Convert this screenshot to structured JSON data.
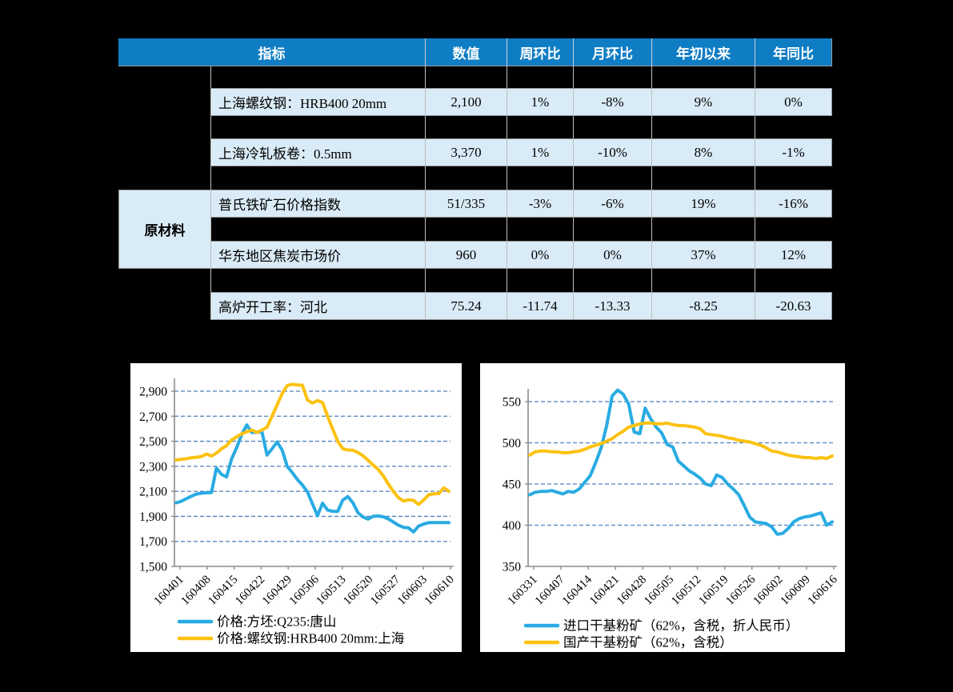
{
  "page": {
    "background": "#000000"
  },
  "table": {
    "colors": {
      "header_bg": "#0F7DC4",
      "row_bg": "#D9EBF6",
      "header_text": "#FFFFFF",
      "grid_line": "#8F8F8F"
    },
    "header": {
      "indicator": "指标",
      "cols": [
        "数值",
        "周环比",
        "月环比",
        "年初以来",
        "年同比"
      ]
    },
    "group_label": "原材料",
    "rows": [
      {
        "indicator": "上海螺纹钢：HRB400 20mm",
        "values": [
          "2,100",
          "1%",
          "-8%",
          "9%",
          "0%"
        ]
      },
      {
        "indicator": "上海冷轧板卷：0.5mm",
        "values": [
          "3,370",
          "1%",
          "-10%",
          "8%",
          "-1%"
        ]
      },
      {
        "indicator": "普氏铁矿石价格指数",
        "values": [
          "51/335",
          "-3%",
          "-6%",
          "19%",
          "-16%"
        ],
        "group": "原材料"
      },
      {
        "indicator": "华东地区焦炭市场价",
        "values": [
          "960",
          "0%",
          "0%",
          "37%",
          "12%"
        ],
        "group": "原材料"
      },
      {
        "indicator": "高炉开工率：河北",
        "values": [
          "75.24",
          "-11.74",
          "-13.33",
          "-8.25",
          "-20.63"
        ]
      }
    ]
  },
  "chart_data": [
    {
      "type": "line",
      "title": "",
      "x_ticks": [
        "160401",
        "160408",
        "160415",
        "160422",
        "160429",
        "160506",
        "160513",
        "160520",
        "160527",
        "160603",
        "160610"
      ],
      "ylim": [
        1500,
        2900
      ],
      "y_step": 200,
      "y_tick_labels": [
        "1,500",
        "1,700",
        "1,900",
        "2,100",
        "2,300",
        "2,500",
        "2,700",
        "2,900"
      ],
      "grid": "horizontal-dashed",
      "grid_color": "#4F81BD",
      "axis_color": "#8C8C8C",
      "legend_position": "bottom",
      "series": [
        {
          "name": "价格:方坯:Q235:唐山",
          "color": "#29ABE2",
          "values": [
            2008,
            2020,
            2040,
            2060,
            2078,
            2085,
            2088,
            2090,
            2285,
            2235,
            2215,
            2360,
            2450,
            2555,
            2630,
            2570,
            2572,
            2575,
            2390,
            2440,
            2495,
            2430,
            2300,
            2250,
            2195,
            2150,
            2095,
            2000,
            1905,
            2005,
            1950,
            1940,
            1940,
            2030,
            2058,
            2008,
            1930,
            1895,
            1878,
            1900,
            1903,
            1897,
            1880,
            1855,
            1830,
            1812,
            1808,
            1775,
            1822,
            1838,
            1850,
            1850,
            1850,
            1850,
            1850
          ]
        },
        {
          "name": "价格:螺纹钢:HRB400 20mm:上海",
          "color": "#FCC211",
          "values": [
            2350,
            2356,
            2360,
            2368,
            2372,
            2378,
            2398,
            2382,
            2405,
            2440,
            2465,
            2510,
            2535,
            2560,
            2575,
            2590,
            2570,
            2590,
            2612,
            2700,
            2790,
            2880,
            2945,
            2955,
            2950,
            2948,
            2830,
            2805,
            2825,
            2810,
            2700,
            2597,
            2500,
            2440,
            2430,
            2428,
            2410,
            2385,
            2348,
            2310,
            2275,
            2225,
            2160,
            2100,
            2050,
            2022,
            2032,
            2028,
            1995,
            2030,
            2072,
            2080,
            2082,
            2128,
            2100
          ]
        }
      ]
    },
    {
      "type": "line",
      "title": "",
      "x_ticks": [
        "160331",
        "160407",
        "160414",
        "160421",
        "160428",
        "160505",
        "160512",
        "160519",
        "160526",
        "160602",
        "160609",
        "160616"
      ],
      "ylim": [
        350,
        550
      ],
      "y_step": 50,
      "y_tick_labels": [
        "350",
        "400",
        "450",
        "500",
        "550"
      ],
      "grid": "horizontal-dashed",
      "grid_color": "#4F81BD",
      "axis_color": "#8C8C8C",
      "legend_position": "bottom",
      "series": [
        {
          "name": "进口干基粉矿（62%，含税，折人民币）",
          "color": "#29ABE2",
          "values": [
            437,
            440,
            441,
            441,
            442,
            440,
            438,
            441,
            440,
            444,
            452,
            460,
            476,
            494,
            521,
            557,
            564,
            559,
            547,
            513,
            511,
            542,
            529,
            519,
            512,
            498,
            495,
            478,
            472,
            466,
            462,
            457,
            450,
            448,
            461,
            458,
            450,
            444,
            437,
            424,
            410,
            404,
            403,
            402,
            398,
            389,
            390,
            396,
            404,
            408,
            410,
            411,
            413,
            415,
            400,
            404
          ]
        },
        {
          "name": "国产干基粉矿（62%，含税）",
          "color": "#FCC211",
          "values": [
            485,
            489,
            490,
            490,
            489,
            489,
            488,
            488,
            489,
            490,
            492,
            495,
            497,
            499,
            502,
            505,
            510,
            514,
            519,
            521,
            523,
            524,
            524,
            523,
            523,
            524,
            522,
            521,
            521,
            520,
            519,
            517,
            511,
            510,
            509,
            508,
            506,
            505,
            503,
            502,
            501,
            499,
            497,
            494,
            490,
            489,
            487,
            485,
            484,
            483,
            482,
            482,
            481,
            482,
            481,
            484
          ]
        }
      ]
    }
  ]
}
